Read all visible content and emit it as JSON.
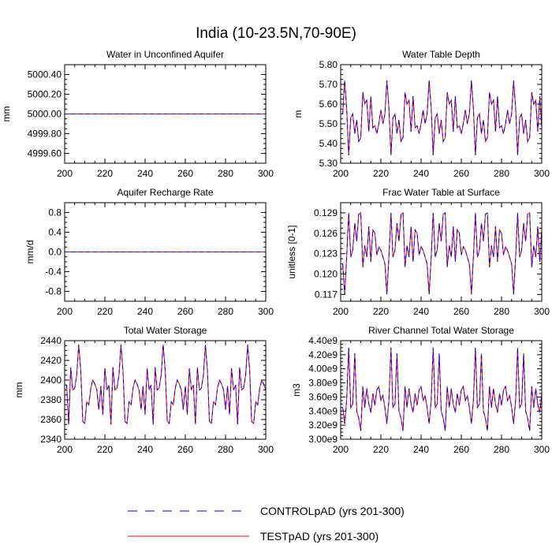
{
  "page_title": "India (10-23.5N,70-90E)",
  "legend": [
    {
      "label": "CONTROLpAD (yrs 201-300)",
      "color": "#0000ff",
      "dash": "dashed"
    },
    {
      "label": "TESTpAD (yrs 201-300)",
      "color": "#ff0000",
      "dash": "solid"
    }
  ],
  "chart_data": [
    {
      "type": "line",
      "title": "Water in Unconfined Aquifer",
      "ylabel": "mm",
      "xlim": [
        200,
        300
      ],
      "ylim": [
        4999.5,
        5000.5
      ],
      "xticks": [
        200,
        220,
        240,
        260,
        280,
        300
      ],
      "xtick_labels": [
        "200",
        "220",
        "240",
        "260",
        "280",
        "300"
      ],
      "yticks": [
        4999.6,
        4999.8,
        5000.0,
        5000.2,
        5000.4
      ],
      "ytick_labels": [
        "4999.60",
        "4999.80",
        "5000.00",
        "5000.20",
        "5000.40"
      ],
      "series": [
        {
          "mode": "constant",
          "value": 5000.0
        }
      ]
    },
    {
      "type": "line",
      "title": "Water Table Depth",
      "ylabel": "m",
      "xlim": [
        200,
        300
      ],
      "ylim": [
        5.3,
        5.8
      ],
      "xticks": [
        200,
        220,
        240,
        260,
        280,
        300
      ],
      "xtick_labels": [
        "200",
        "220",
        "240",
        "260",
        "280",
        "300"
      ],
      "yticks": [
        5.3,
        5.4,
        5.5,
        5.6,
        5.7,
        5.8
      ],
      "ytick_labels": [
        "5.30",
        "5.40",
        "5.50",
        "5.60",
        "5.70",
        "5.80"
      ],
      "series": [
        {
          "mode": "cycle",
          "start": 201,
          "values": [
            5.55,
            5.72,
            5.58,
            5.34,
            5.53,
            5.55,
            5.45,
            5.52,
            5.41,
            5.43,
            5.66,
            5.6,
            5.62,
            5.46,
            5.64,
            5.48,
            5.49,
            5.45,
            5.5,
            5.57,
            5.5
          ]
        }
      ]
    },
    {
      "type": "line",
      "title": "Aquifer Recharge Rate",
      "ylabel": "mm/d",
      "xlim": [
        200,
        300
      ],
      "ylim": [
        -1.0,
        1.0
      ],
      "xticks": [
        200,
        220,
        240,
        260,
        280,
        300
      ],
      "xtick_labels": [
        "200",
        "220",
        "240",
        "260",
        "280",
        "300"
      ],
      "yticks": [
        -0.8,
        -0.4,
        0.0,
        0.4,
        0.8
      ],
      "ytick_labels": [
        "-0.8",
        "-0.4",
        "0.0",
        "0.4",
        "0.8"
      ],
      "series": [
        {
          "mode": "constant",
          "value": 0.0
        }
      ]
    },
    {
      "type": "line",
      "title": "Frac Water Table at Surface",
      "ylabel": "unitless [0-1]",
      "xlim": [
        200,
        300
      ],
      "ylim": [
        0.116,
        0.1305
      ],
      "xticks": [
        200,
        220,
        240,
        260,
        280,
        300
      ],
      "xtick_labels": [
        "200",
        "220",
        "240",
        "260",
        "280",
        "300"
      ],
      "yticks": [
        0.117,
        0.12,
        0.123,
        0.126,
        0.129
      ],
      "ytick_labels": [
        "0.117",
        "0.120",
        "0.123",
        "0.126",
        "0.129"
      ],
      "series": [
        {
          "mode": "cycle",
          "start": 201,
          "values": [
            0.1215,
            0.117,
            0.1225,
            0.129,
            0.1225,
            0.1235,
            0.1275,
            0.1248,
            0.1288,
            0.129,
            0.121,
            0.1242,
            0.1225,
            0.127,
            0.1218,
            0.1265,
            0.126,
            0.1228,
            0.124,
            0.1235,
            0.1225
          ]
        }
      ]
    },
    {
      "type": "line",
      "title": "Total Water Storage",
      "ylabel": "mm",
      "xlim": [
        200,
        300
      ],
      "ylim": [
        2340,
        2440
      ],
      "xticks": [
        200,
        220,
        240,
        260,
        280,
        300
      ],
      "xtick_labels": [
        "200",
        "220",
        "240",
        "260",
        "280",
        "300"
      ],
      "yticks": [
        2340,
        2360,
        2380,
        2400,
        2420,
        2440
      ],
      "ytick_labels": [
        "2340",
        "2360",
        "2380",
        "2400",
        "2420",
        "2440"
      ],
      "series": [
        {
          "mode": "cycle",
          "start": 201,
          "values": [
            2395,
            2355,
            2413,
            2390,
            2392,
            2405,
            2436,
            2410,
            2358,
            2356,
            2378,
            2375,
            2392,
            2400,
            2396,
            2390,
            2370,
            2394,
            2365,
            2412,
            2390
          ]
        }
      ]
    },
    {
      "type": "line",
      "title": "River Channel Total Water Storage",
      "ylabel": "m3",
      "xlim": [
        200,
        300
      ],
      "ylim": [
        3000000000.0,
        4400000000.0
      ],
      "xticks": [
        200,
        220,
        240,
        260,
        280,
        300
      ],
      "xtick_labels": [
        "200",
        "220",
        "240",
        "260",
        "280",
        "300"
      ],
      "yticks": [
        3000000000.0,
        3200000000.0,
        3400000000.0,
        3600000000.0,
        3800000000.0,
        4000000000.0,
        4200000000.0,
        4400000000.0
      ],
      "ytick_labels": [
        "3.00e9",
        "3.20e9",
        "3.40e9",
        "3.60e9",
        "3.80e9",
        "4.00e9",
        "4.20e9",
        "4.40e9"
      ],
      "series": [
        {
          "mode": "cycle",
          "start": 201,
          "values": [
            3450000000.0,
            3220000000.0,
            3550000000.0,
            4300000000.0,
            3450000000.0,
            3500000000.0,
            4220000000.0,
            3400000000.0,
            3300000000.0,
            3120000000.0,
            3750000000.0,
            3450000000.0,
            3720000000.0,
            3500000000.0,
            3380000000.0,
            3650000000.0,
            3480000000.0,
            3700000000.0,
            3750000000.0,
            3550000000.0,
            3620000000.0
          ]
        }
      ]
    }
  ]
}
